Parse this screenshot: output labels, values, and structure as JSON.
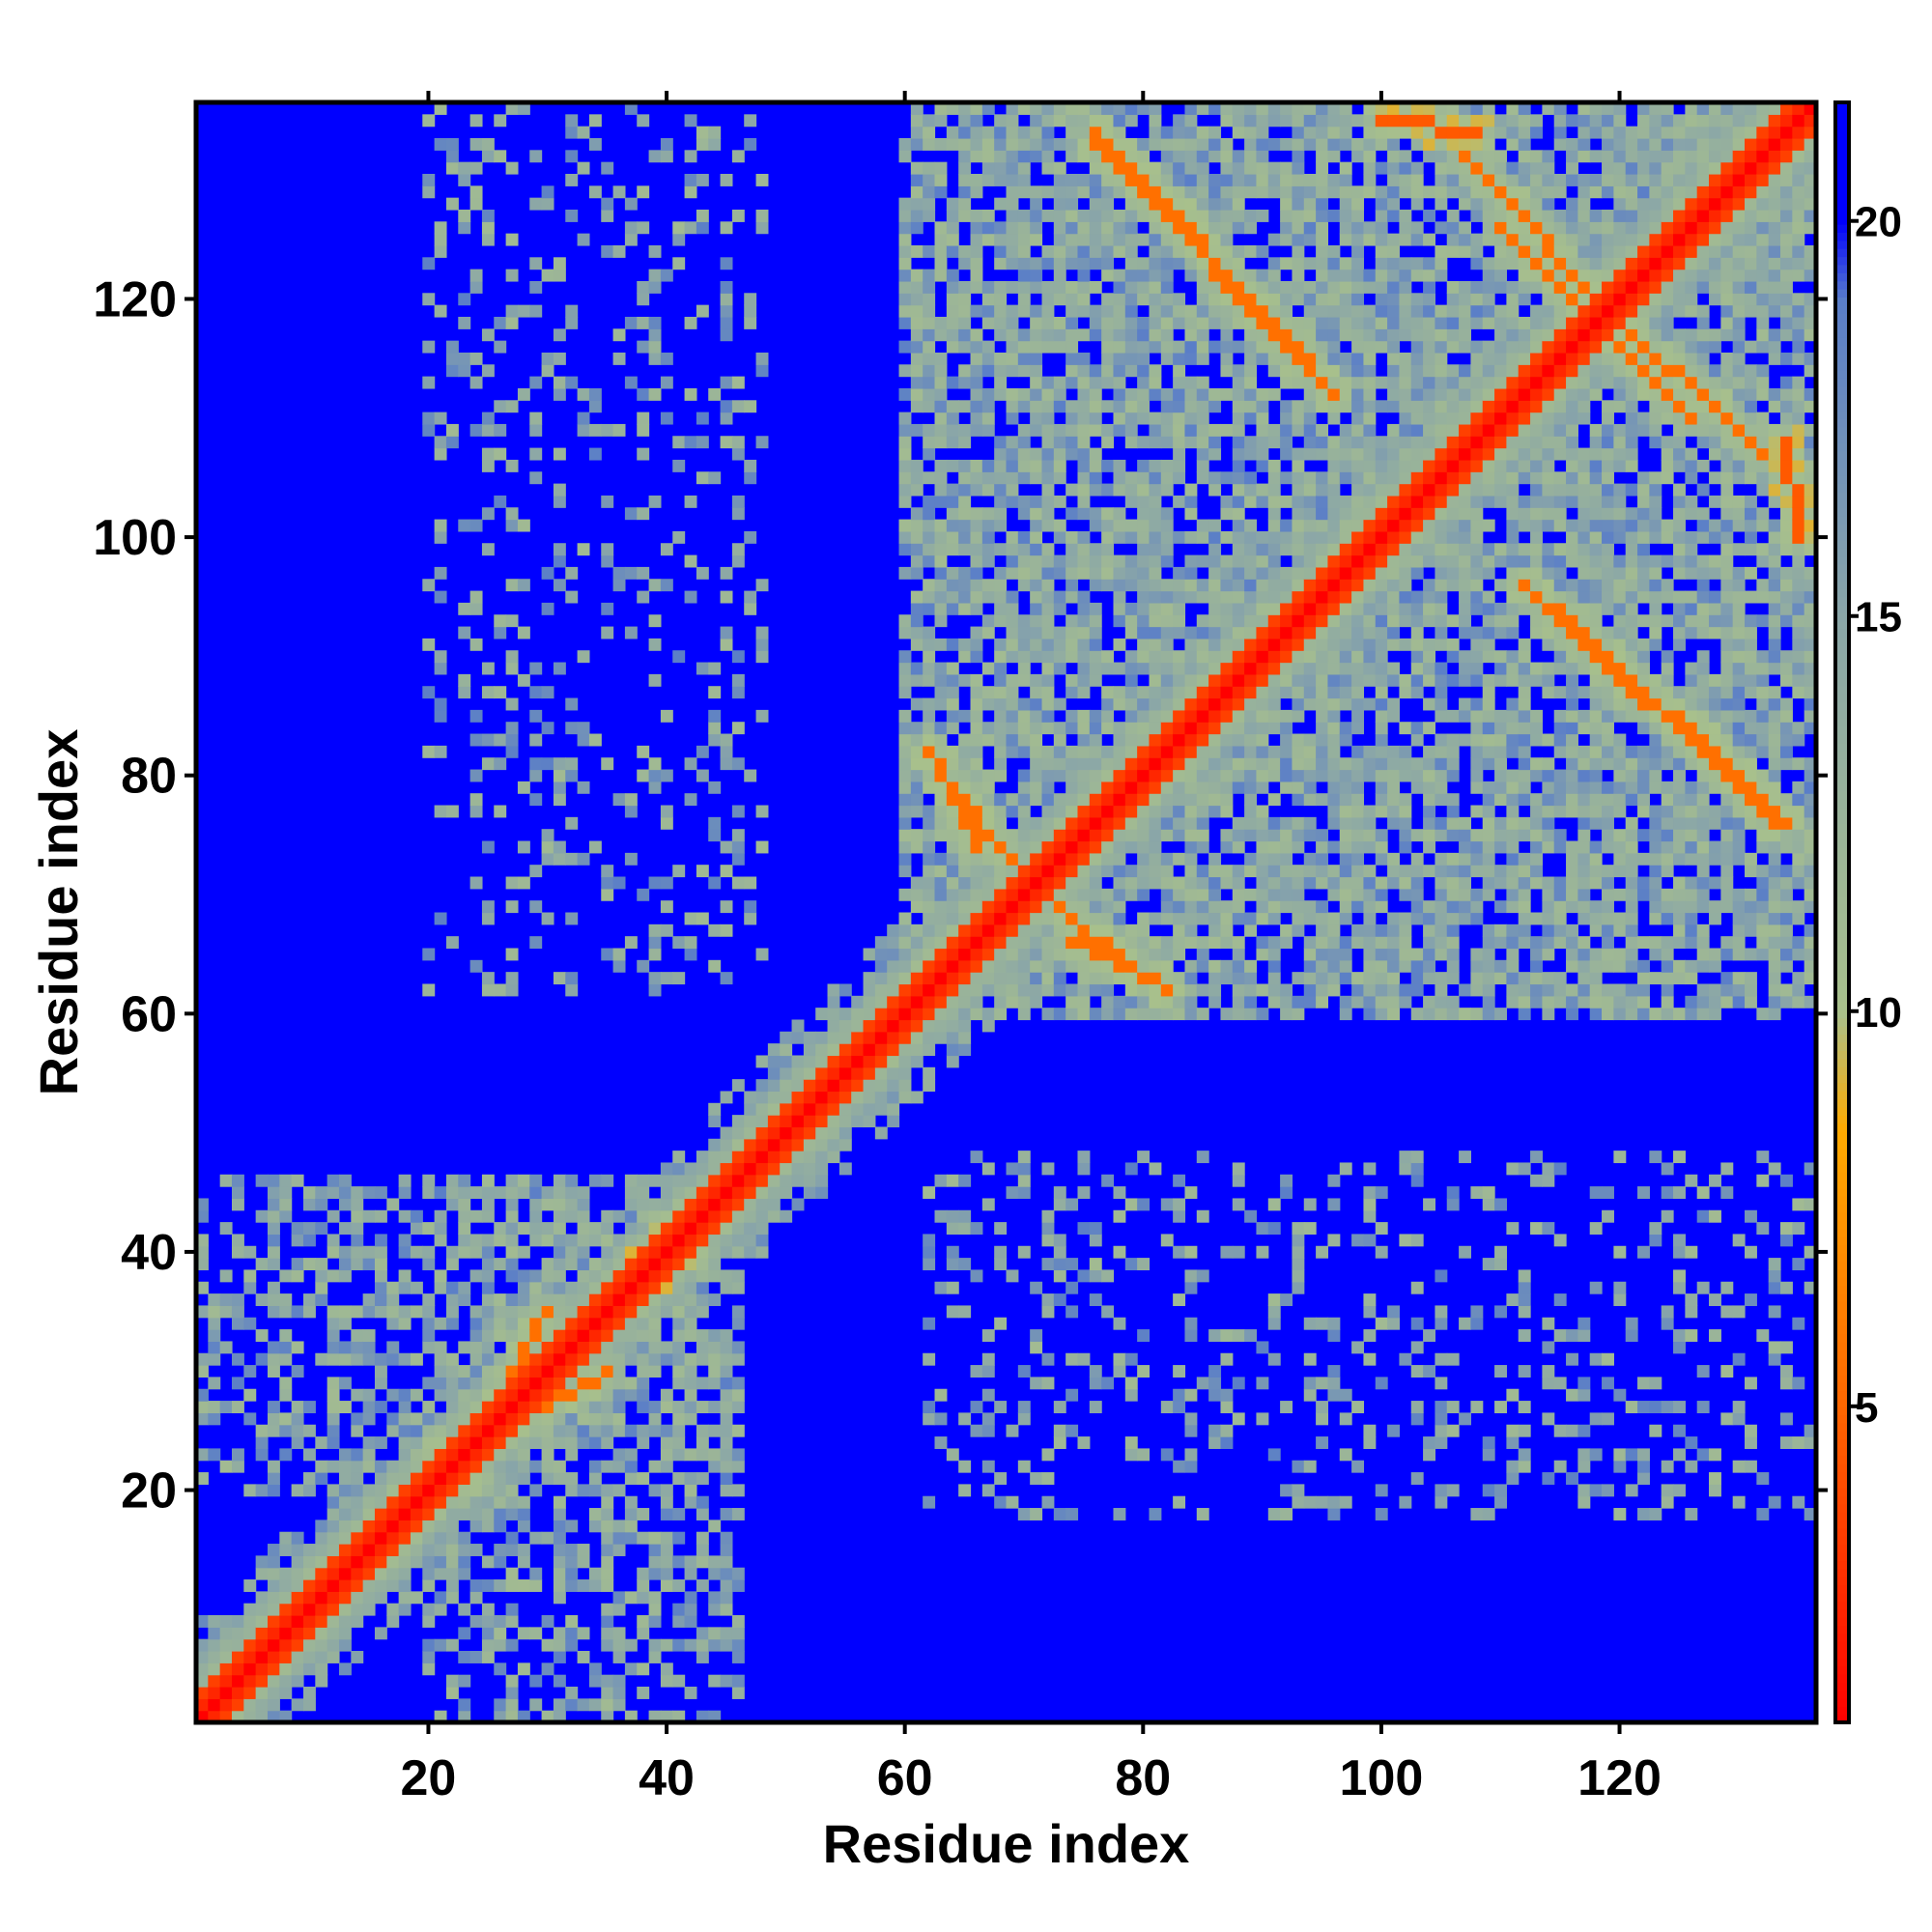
{
  "chart_data": {
    "type": "heatmap",
    "title": "",
    "xlabel": "Residue index",
    "ylabel": "Residue index",
    "n_residues": 136,
    "xlim": [
      0.5,
      136.5
    ],
    "ylim": [
      0.5,
      136.5
    ],
    "x_ticks": [
      20,
      40,
      60,
      80,
      100,
      120
    ],
    "y_ticks": [
      20,
      40,
      60,
      80,
      100,
      120
    ],
    "colorbar": {
      "range": [
        1,
        21.5
      ],
      "ticks": [
        5,
        10,
        15,
        20
      ],
      "colors": [
        {
          "value": 1,
          "color": "#ff0000"
        },
        {
          "value": 5,
          "color": "#ff6600"
        },
        {
          "value": 8.5,
          "color": "#ffaa00"
        },
        {
          "value": 10,
          "color": "#a8c08c"
        },
        {
          "value": 15,
          "color": "#8aa6a8"
        },
        {
          "value": 19,
          "color": "#5a7ec8"
        },
        {
          "value": 20,
          "color": "#0000ff"
        }
      ]
    },
    "background_value": 21,
    "diagonal_band": {
      "exact": 1,
      "width1": 3.8,
      "width2": 6.5
    },
    "clusters": [
      {
        "x": [
          20,
          46
        ],
        "y": [
          1,
          46
        ],
        "kind": "n_term_core"
      },
      {
        "x": [
          60,
          136
        ],
        "y": [
          60,
          136
        ],
        "kind": "c_term_domain"
      },
      {
        "x": [
          20,
          48
        ],
        "y": [
          62,
          136
        ],
        "kind": "sparse_contacts"
      },
      {
        "x": [
          62,
          136
        ],
        "y": [
          18,
          48
        ],
        "kind": "sparse_contacts"
      }
    ],
    "secondary_strands": [
      {
        "x": [
          76,
          96
        ],
        "y": [
          133,
          112
        ],
        "value": 7
      },
      {
        "x": [
          107,
          120
        ],
        "y": [
          132,
          118
        ],
        "value": 7
      },
      {
        "x": [
          116,
          126
        ],
        "y": [
          120,
          110
        ],
        "value": 7
      },
      {
        "x": [
          115,
          134
        ],
        "y": [
          94,
          76
        ],
        "value": 7
      },
      {
        "x": [
          63,
          69
        ],
        "y": [
          80,
          73
        ],
        "value": 7
      },
      {
        "x": [
          74,
          82
        ],
        "y": [
          66,
          62
        ],
        "value": 7
      },
      {
        "x": [
          20,
          35
        ],
        "y": [
          22,
          30
        ],
        "value": 7
      },
      {
        "x": [
          37,
          47
        ],
        "y": [
          36,
          47
        ],
        "value": 6
      },
      {
        "x": [
          100,
          108
        ],
        "y": [
          135,
          134
        ],
        "value": 6
      }
    ]
  }
}
